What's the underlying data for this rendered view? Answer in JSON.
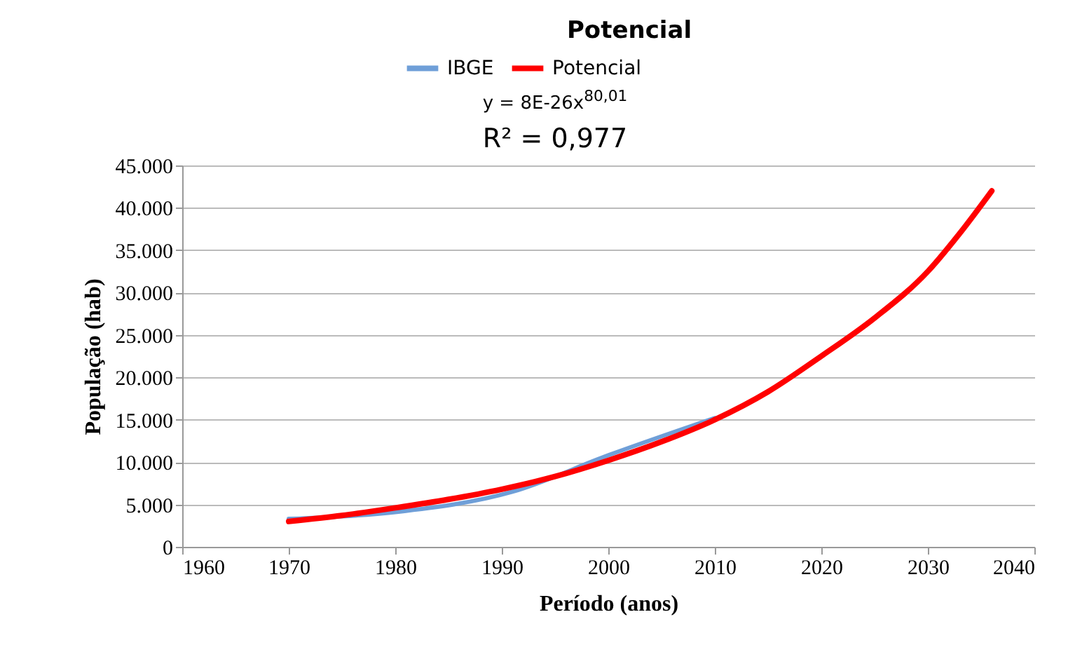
{
  "chart_data": {
    "type": "line",
    "title": "Potencial",
    "xlabel": "Período (anos)",
    "ylabel": "População (hab)",
    "annotations": [
      "y = 8E-26x$^{80,01}$",
      "R² = 0,977"
    ],
    "series": [
      {
        "name": "IBGE",
        "color": "#6f9fd8",
        "x": [
          1970,
          1980,
          1991,
          2000,
          2010
        ],
        "values": [
          3300,
          4100,
          6500,
          10800,
          15200
        ]
      },
      {
        "name": "Potencial",
        "color": "#ff0000",
        "x": [
          1970,
          1975,
          1980,
          1985,
          1990,
          1995,
          2000,
          2005,
          2010,
          2015,
          2020,
          2025,
          2030,
          2033,
          2036
        ],
        "values": [
          3000,
          3700,
          4600,
          5600,
          6800,
          8300,
          10200,
          12400,
          15000,
          18300,
          22500,
          27000,
          32500,
          37000,
          42000
        ]
      }
    ],
    "xlim": [
      1960,
      2040
    ],
    "xticks": [
      1960,
      1970,
      1980,
      1990,
      2000,
      2010,
      2020,
      2030,
      2040
    ],
    "ylim": [
      0,
      45000
    ],
    "yticks": [
      0,
      {
        "value": 5000,
        "label": "5.000"
      },
      {
        "value": 10000,
        "label": "10.000"
      },
      {
        "value": 15000,
        "label": "15.000"
      },
      {
        "value": 20000,
        "label": "20.000"
      },
      {
        "value": 25000,
        "label": "25.000"
      },
      {
        "value": 30000,
        "label": "30.000"
      },
      {
        "value": 35000,
        "label": "35.000"
      },
      {
        "value": 40000,
        "label": "40.000"
      },
      {
        "value": 45000,
        "label": "45.000"
      }
    ],
    "grid": "y",
    "legend": "top",
    "marker": "none",
    "line_style": "solid"
  }
}
